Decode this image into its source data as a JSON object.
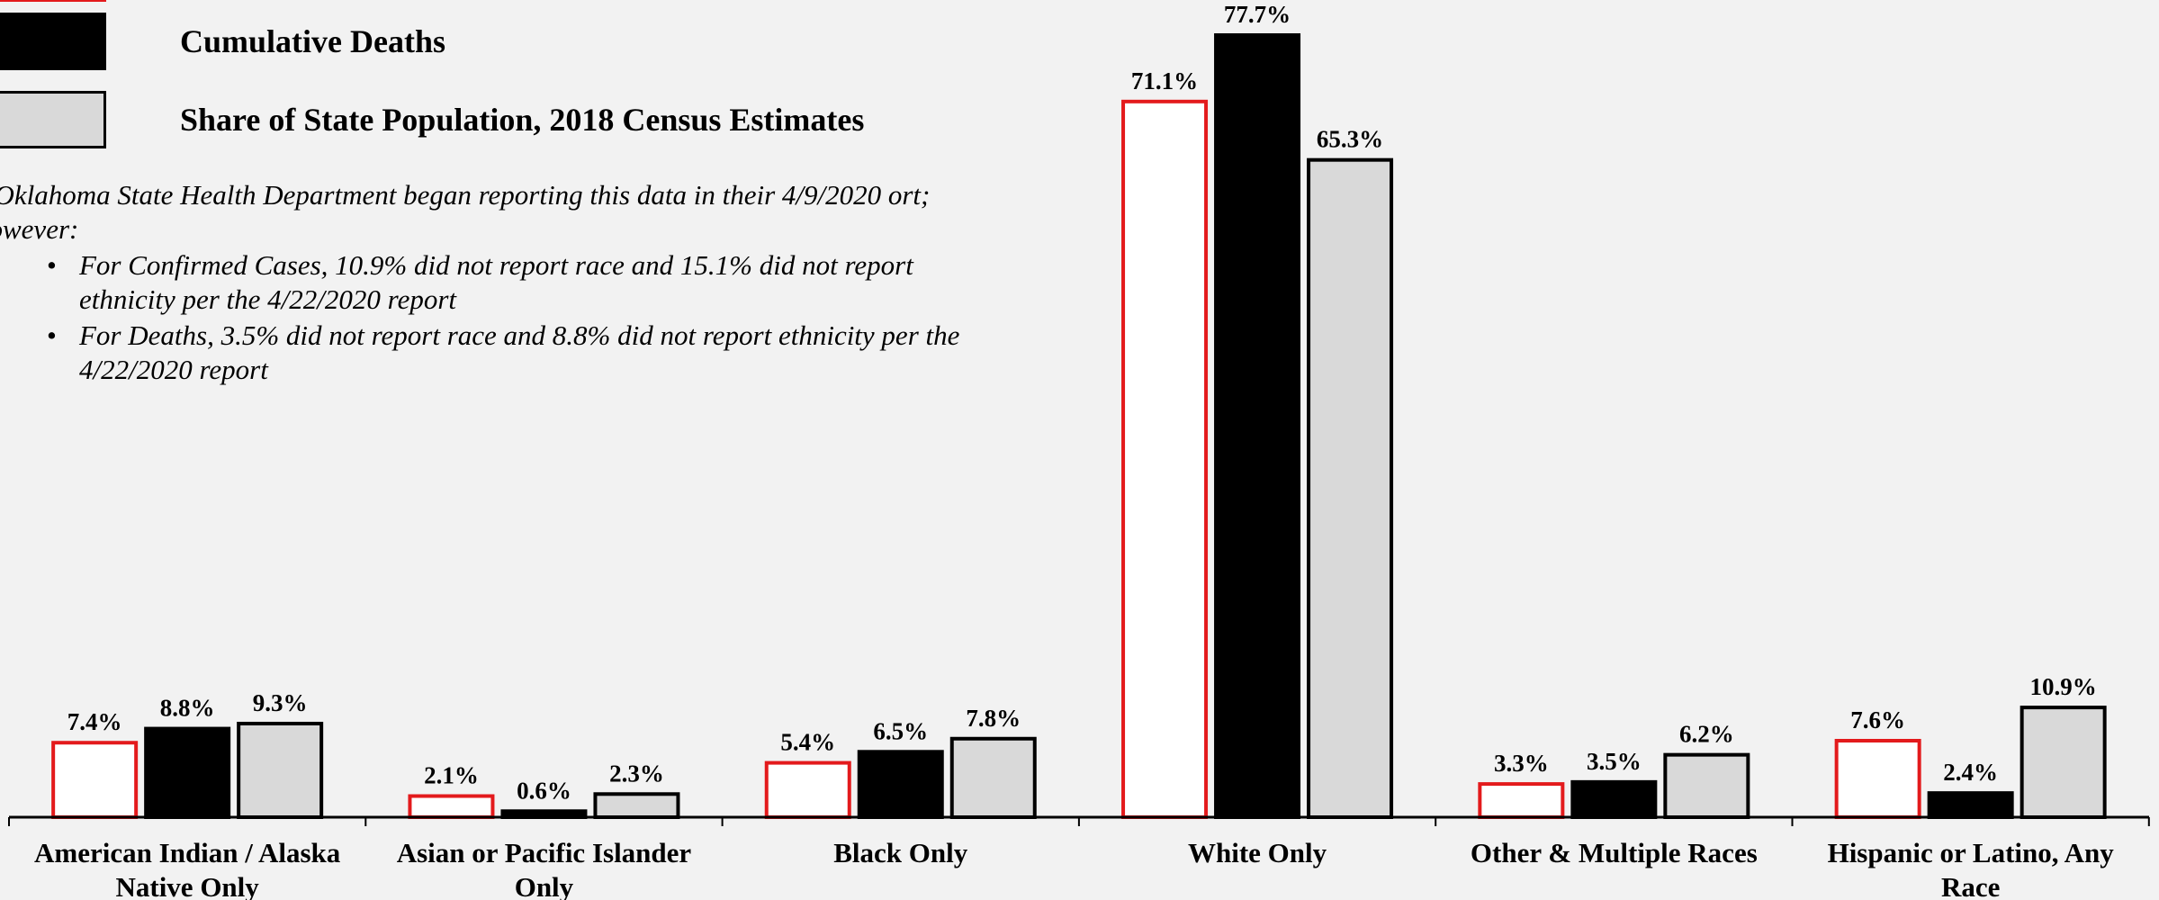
{
  "legend": {
    "items": [
      {
        "label": "",
        "stroke": "#e31a1c",
        "fill": "#ffffff"
      },
      {
        "label": "Cumulative Deaths",
        "stroke": "#000000",
        "fill": "#000000"
      },
      {
        "label": "Share of State Population, 2018 Census Estimates",
        "stroke": "#000000",
        "fill": "#d9d9d9"
      }
    ]
  },
  "note": {
    "intro": "e Oklahoma State Health Department began reporting this data in their 4/9/2020 ort; however:",
    "bullets": [
      "For Confirmed Cases, 10.9% did not report race and 15.1% did not report ethnicity per the 4/22/2020 report",
      "For Deaths, 3.5% did not report race and 8.8% did not report ethnicity per the 4/22/2020 report"
    ]
  },
  "chart_data": {
    "type": "bar",
    "categories": [
      "American Indian / Alaska Native Only",
      "Asian or Pacific Islander Only",
      "Black Only",
      "White Only",
      "Other & Multiple Races",
      "Hispanic or Latino, Any Race"
    ],
    "series": [
      {
        "values": [
          7.4,
          2.1,
          5.4,
          71.1,
          3.3,
          7.6
        ],
        "labels": [
          "7.4%",
          "2.1%",
          "5.4%",
          "71.1%",
          "3.3%",
          "7.6%"
        ],
        "fill": "#ffffff",
        "stroke": "#e31a1c"
      },
      {
        "name": "Cumulative Deaths",
        "values": [
          8.8,
          0.6,
          6.5,
          77.7,
          3.5,
          2.4
        ],
        "labels": [
          "8.8%",
          "0.6%",
          "6.5%",
          "77.7%",
          "3.5%",
          "2.4%"
        ],
        "fill": "#000000",
        "stroke": "#000000"
      },
      {
        "name": "Share of State Population, 2018 Census Estimates",
        "values": [
          9.3,
          2.3,
          7.8,
          65.3,
          6.2,
          10.9
        ],
        "labels": [
          "9.3%",
          "2.3%",
          "7.8%",
          "65.3%",
          "6.2%",
          "10.9%"
        ],
        "fill": "#d9d9d9",
        "stroke": "#000000"
      }
    ],
    "ylim": [
      0,
      80
    ],
    "grid": false,
    "legend_position": "top-left"
  }
}
